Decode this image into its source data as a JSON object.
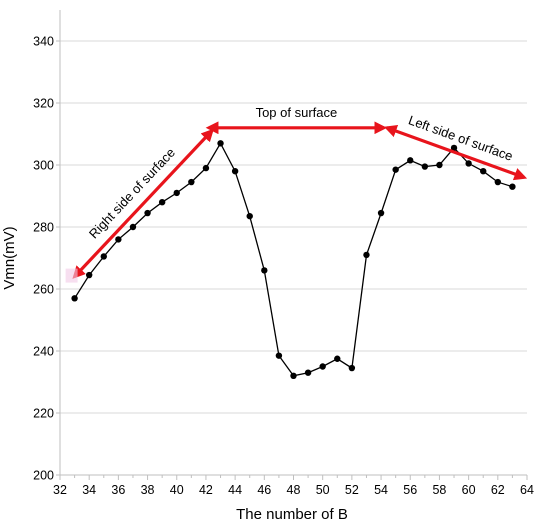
{
  "chart_data": {
    "type": "line",
    "xlabel": "The number of B",
    "ylabel": "Vmn(mV)",
    "xlim": [
      32,
      64
    ],
    "ylim": [
      200,
      350
    ],
    "x_ticks": [
      32,
      34,
      36,
      38,
      40,
      42,
      44,
      46,
      48,
      50,
      52,
      54,
      56,
      58,
      60,
      62,
      64
    ],
    "y_ticks": [
      200,
      220,
      240,
      260,
      280,
      300,
      320,
      340
    ],
    "grid": "horizontal",
    "series": [
      {
        "marker": "circle",
        "color": "#000000",
        "x": [
          33,
          34,
          35,
          36,
          37,
          38,
          39,
          40,
          41,
          42,
          43,
          44,
          45,
          46,
          47,
          48,
          49,
          50,
          51,
          52,
          53,
          54,
          55,
          56,
          57,
          58,
          59,
          60,
          61,
          62,
          63
        ],
        "y": [
          257,
          264.5,
          270.5,
          276,
          280,
          284.5,
          288,
          291,
          294.5,
          299,
          307,
          298,
          283.5,
          266,
          238.5,
          232,
          233,
          235,
          237.5,
          234.5,
          271,
          284.5,
          298.5,
          301.5,
          299.5,
          300,
          305.5,
          300.5,
          298,
          294.5,
          293
        ]
      }
    ],
    "annotations": [
      {
        "text": "Right side of surface",
        "arrow_from": [
          33,
          264
        ],
        "arrow_to": [
          42.4,
          311
        ],
        "color": "#e8141c"
      },
      {
        "text": "Top of surface",
        "arrow_from": [
          42.2,
          312
        ],
        "arrow_to": [
          54.2,
          312
        ],
        "color": "#e8141c"
      },
      {
        "text": "Left side of surface",
        "arrow_from": [
          54.4,
          312
        ],
        "arrow_to": [
          63.8,
          296
        ],
        "color": "#e8141c"
      }
    ]
  }
}
